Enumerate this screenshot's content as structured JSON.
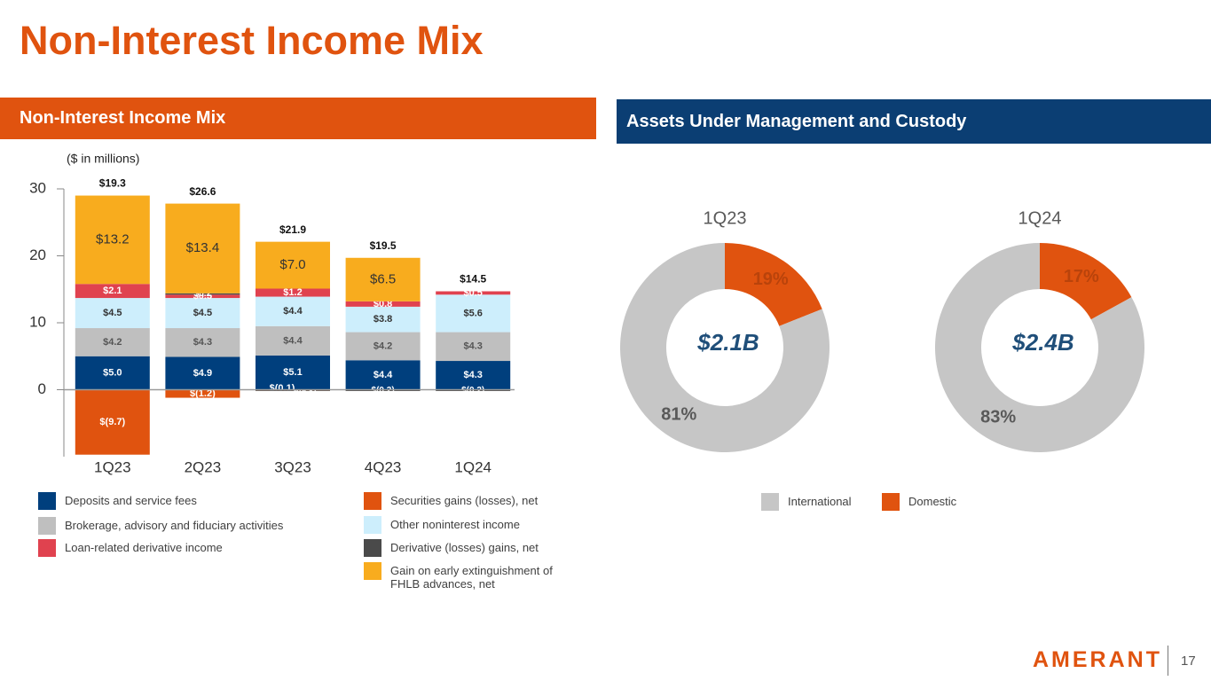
{
  "header": {
    "title": "Non-Interest Income Mix"
  },
  "panels": {
    "left_title": "Non-Interest Income Mix",
    "right_title": "Assets Under Management and Custody"
  },
  "footer": {
    "logo": "AMERANT",
    "page_number": "17"
  },
  "chart_data": [
    {
      "type": "bar",
      "stacked": true,
      "subtitle": "($ in millions)",
      "categories": [
        "1Q23",
        "2Q23",
        "3Q23",
        "4Q23",
        "1Q24"
      ],
      "ylim": [
        -10,
        30
      ],
      "yticks": [
        0,
        10,
        20,
        30
      ],
      "series": [
        {
          "name": "Deposits and service fees",
          "color": "#003f7d",
          "values": [
            5.0,
            4.9,
            5.1,
            4.4,
            4.3
          ],
          "value_labels": [
            "$5.0",
            "$4.9",
            "$5.1",
            "$4.4",
            "$4.3"
          ]
        },
        {
          "name": "Brokerage, advisory and fiduciary activities",
          "color": "#bfbfbf",
          "values": [
            4.2,
            4.3,
            4.4,
            4.2,
            4.3
          ],
          "value_labels": [
            "$4.2",
            "$4.3",
            "$4.4",
            "$4.2",
            "$4.3"
          ]
        },
        {
          "name": "Other noninterest income",
          "color": "#cdeefc",
          "values": [
            4.5,
            4.5,
            4.4,
            3.8,
            5.6
          ],
          "value_labels": [
            "$4.5",
            "$4.5",
            "$4.4",
            "$3.8",
            "$5.6"
          ]
        },
        {
          "name": "Loan-related derivative income",
          "color": "#e0424f",
          "values": [
            2.1,
            0.5,
            1.2,
            0.8,
            0.5
          ],
          "value_labels": [
            "$2.1",
            "$0.5",
            "$1.2",
            "$0.8",
            "$0.5"
          ]
        },
        {
          "name": "Derivative (losses) gains, net",
          "color": "#4a4a4a",
          "values": [
            null,
            0.2,
            -0.1,
            -0.2,
            -0.2
          ],
          "value_labels": [
            null,
            "$0.2",
            "$(0.1)",
            "$(0.2)",
            "$(0.2)"
          ]
        },
        {
          "name": "Gain on early extinguishment of FHLB advances, net",
          "color": "#f8ac1e",
          "values": [
            13.2,
            13.4,
            7.0,
            6.5,
            null
          ],
          "value_labels": [
            "$13.2",
            "$13.4",
            "$7.0",
            "$6.5",
            null
          ]
        },
        {
          "name": "Securities gains (losses), net",
          "color": "#e0530f",
          "values": [
            -9.7,
            -1.2,
            -0.1,
            null,
            null
          ],
          "value_labels": [
            "$(9.7)",
            "$(1.2)",
            "$(0.1)",
            null,
            null
          ]
        }
      ],
      "totals": {
        "values": [
          19.3,
          26.6,
          21.9,
          19.5,
          14.5
        ],
        "value_labels": [
          "$19.3",
          "$26.6",
          "$21.9",
          "$19.5",
          "$14.5"
        ]
      }
    },
    {
      "type": "donut",
      "categories": [
        "Domestic",
        "International"
      ],
      "colors": [
        "#e0530f",
        "#c6c6c6"
      ],
      "panels": [
        {
          "title": "1Q23",
          "values": [
            19,
            81
          ],
          "value_labels": [
            "19%",
            "81%"
          ],
          "center_label": "$2.1B"
        },
        {
          "title": "1Q24",
          "values": [
            17,
            83
          ],
          "value_labels": [
            "17%",
            "83%"
          ],
          "center_label": "$2.4B"
        }
      ]
    }
  ]
}
